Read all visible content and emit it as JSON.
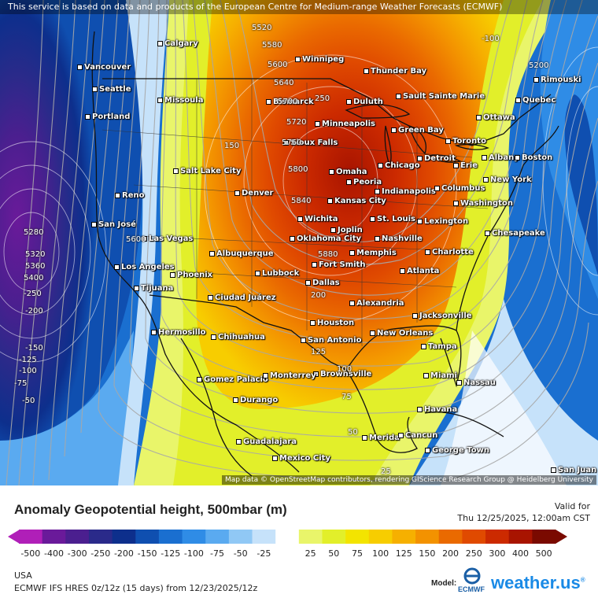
{
  "credit_top": "This service is based on data and products of the European Centre for Medium-range Weather Forecasts (ECMWF)",
  "credit_bottom": "Map data © OpenStreetMap contributors, rendering GIScience Research Group @ Heidelberg University",
  "title": "Anomaly Geopotential height, 500mbar (m)",
  "valid_label": "Valid for",
  "valid_time": "Thu 12/25/2025, 12:00am CST",
  "region": "USA",
  "model_line": "ECMWF IFS HRES 0z/12z (15 days) from 12/23/2025/12z",
  "model_label": "Model:",
  "model_logo_text": "ECMWF",
  "brand": "weather.us",
  "colors": {
    "m500": "#b01fb8",
    "m400": "#6a1a9a",
    "m300": "#4b1f8f",
    "m250": "#2a2a8a",
    "m200": "#0d2f8c",
    "m150": "#0f4fb0",
    "m125": "#1a6fd0",
    "m100": "#2f8ce6",
    "m75": "#5aaaf0",
    "m50": "#90c8f5",
    "m25": "#c6e2fa",
    "zero": "#ffffff",
    "p25": "#e9f56a",
    "p50": "#e2ef2a",
    "p75": "#f3e400",
    "p100": "#f7cd00",
    "p125": "#f6b000",
    "p150": "#f39200",
    "p200": "#ea6a00",
    "p250": "#e04a00",
    "p300": "#cc2a00",
    "p400": "#a81400",
    "p500": "#7a0a00"
  },
  "legend": {
    "ticks": [
      "-500",
      "-400",
      "-300",
      "-250",
      "-200",
      "-150",
      "-125",
      "-100",
      "-75",
      "-50",
      "-25",
      "25",
      "50",
      "75",
      "100",
      "125",
      "150",
      "200",
      "250",
      "300",
      "400",
      "500"
    ]
  },
  "cities": [
    {
      "name": "Calgary"
    },
    {
      "name": "Vancouver"
    },
    {
      "name": "Seattle"
    },
    {
      "name": "Missoula"
    },
    {
      "name": "Portland"
    },
    {
      "name": "Winnipeg"
    },
    {
      "name": "Thunder Bay"
    },
    {
      "name": "Bismarck"
    },
    {
      "name": "Duluth"
    },
    {
      "name": "Sault Sainte Marie"
    },
    {
      "name": "Rimouski"
    },
    {
      "name": "Quebec"
    },
    {
      "name": "Ottawa"
    },
    {
      "name": "Minneapolis"
    },
    {
      "name": "Green Bay"
    },
    {
      "name": "Toronto"
    },
    {
      "name": "Sioux Falls"
    },
    {
      "name": "Salt Lake City"
    },
    {
      "name": "Chicago"
    },
    {
      "name": "Detroit"
    },
    {
      "name": "Albany"
    },
    {
      "name": "Boston"
    },
    {
      "name": "Erie"
    },
    {
      "name": "Omaha"
    },
    {
      "name": "Peoria"
    },
    {
      "name": "Reno"
    },
    {
      "name": "Denver"
    },
    {
      "name": "Indianapolis"
    },
    {
      "name": "Columbus"
    },
    {
      "name": "New York"
    },
    {
      "name": "Kansas City"
    },
    {
      "name": "Washington"
    },
    {
      "name": "San José"
    },
    {
      "name": "Wichita"
    },
    {
      "name": "St. Louis"
    },
    {
      "name": "Joplin"
    },
    {
      "name": "Lexington"
    },
    {
      "name": "Las Vegas"
    },
    {
      "name": "Chesapeake"
    },
    {
      "name": "Oklahoma City"
    },
    {
      "name": "Nashville"
    },
    {
      "name": "Albuquerque"
    },
    {
      "name": "Memphis"
    },
    {
      "name": "Charlotte"
    },
    {
      "name": "Los Angeles"
    },
    {
      "name": "Fort Smith"
    },
    {
      "name": "Phoenix"
    },
    {
      "name": "Lubbock"
    },
    {
      "name": "Atlanta"
    },
    {
      "name": "Tijuana"
    },
    {
      "name": "Dallas"
    },
    {
      "name": "Ciudad Juárez"
    },
    {
      "name": "Alexandria"
    },
    {
      "name": "Jacksonville"
    },
    {
      "name": "Houston"
    },
    {
      "name": "Hermosillo"
    },
    {
      "name": "New Orleans"
    },
    {
      "name": "Chihuahua"
    },
    {
      "name": "San Antonio"
    },
    {
      "name": "Tampa"
    },
    {
      "name": "Brownsville"
    },
    {
      "name": "Gomez Palacio"
    },
    {
      "name": "Monterrey"
    },
    {
      "name": "Miami"
    },
    {
      "name": "Nassau"
    },
    {
      "name": "Durango"
    },
    {
      "name": "Havana"
    },
    {
      "name": "Merida"
    },
    {
      "name": "Cancun"
    },
    {
      "name": "Guadalajara"
    },
    {
      "name": "George Town"
    },
    {
      "name": "Mexico City"
    },
    {
      "name": "San Juan"
    }
  ],
  "contour_labels": [
    "5520",
    "5580",
    "5600",
    "5640",
    "5700",
    "5720",
    "5760",
    "5800",
    "5840",
    "5880",
    "5200",
    "5280",
    "5320",
    "5360",
    "5400",
    "5600",
    "-100",
    "250",
    "200",
    "150",
    "125",
    "100",
    "75",
    "50",
    "25",
    "-250",
    "-200",
    "-150",
    "-125",
    "-100",
    "-75",
    "-50"
  ]
}
